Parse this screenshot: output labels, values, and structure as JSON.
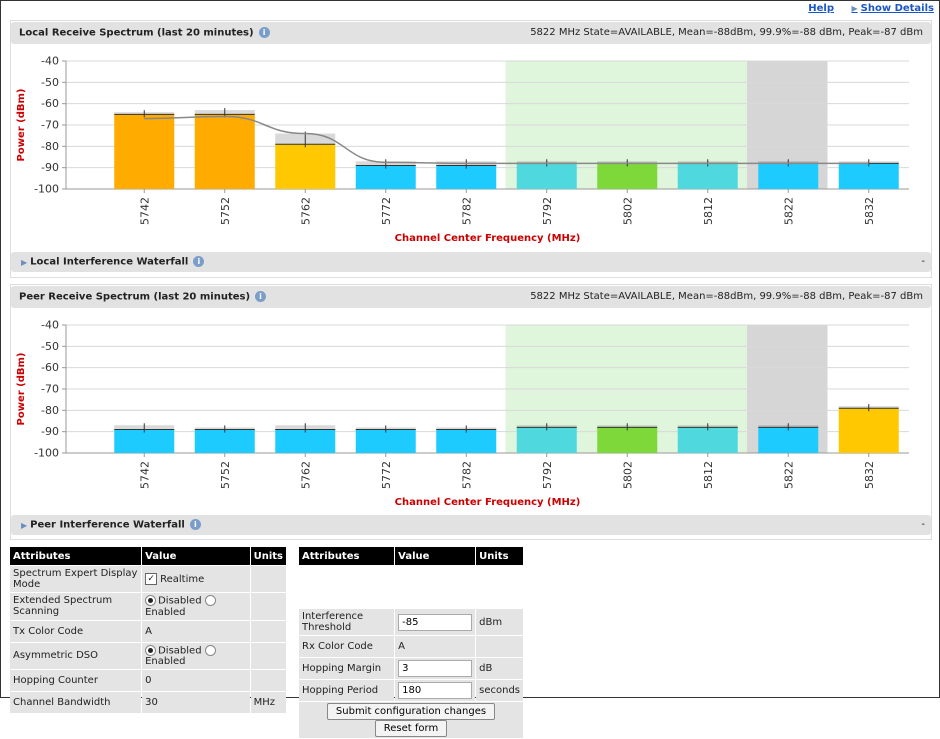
{
  "links": {
    "help": "Help",
    "show_details": "Show Details"
  },
  "local": {
    "title": "Local Receive Spectrum (last 20 minutes)",
    "status": "5822 MHz State=AVAILABLE, Mean=-88dBm, 99.9%=-88 dBm, Peak=-87 dBm",
    "waterfall_label": "Local Interference Waterfall",
    "waterfall_dash": "-"
  },
  "peer": {
    "title": "Peer Receive Spectrum (last 20 minutes)",
    "status": "5822 MHz State=AVAILABLE, Mean=-88dBm, 99.9%=-88 dBm, Peak=-87 dBm",
    "waterfall_label": "Peer Interference Waterfall",
    "waterfall_dash": "-"
  },
  "chart_data": [
    {
      "type": "bar",
      "title": "Local Receive Spectrum (last 20 minutes)",
      "xlabel": "Channel Center Frequency (MHz)",
      "ylabel": "Power (dBm)",
      "ylim": [
        -100,
        -40
      ],
      "yticks": [
        -40,
        -50,
        -60,
        -70,
        -80,
        -90,
        -100
      ],
      "categories": [
        "5742",
        "5752",
        "5762",
        "5772",
        "5782",
        "5792",
        "5802",
        "5812",
        "5822",
        "5832"
      ],
      "values": [
        -65,
        -65,
        -79,
        -89,
        -89,
        -88,
        -88,
        -88,
        -88,
        -88
      ],
      "peaks": [
        -64,
        -63,
        -74,
        -87,
        -87,
        -87,
        -87,
        -87,
        -87,
        -87
      ],
      "bar_colors": [
        "#ffab00",
        "#ffab00",
        "#ffc800",
        "#1ecbff",
        "#1ecbff",
        "#4fd9de",
        "#7ed83a",
        "#4fd9de",
        "#1ecbff",
        "#1ecbff"
      ],
      "mean_curve": [
        -67,
        -66,
        -74,
        -87.5,
        -88,
        -88,
        -88,
        -88,
        -88,
        -88
      ],
      "highlight_ranges": [
        {
          "from": "5792",
          "to": "5812",
          "color": "#dff5dc"
        },
        {
          "from": "5822",
          "to": "5822",
          "color": "#d6d6d6"
        }
      ],
      "grid": true
    },
    {
      "type": "bar",
      "title": "Peer Receive Spectrum (last 20 minutes)",
      "xlabel": "Channel Center Frequency (MHz)",
      "ylabel": "Power (dBm)",
      "ylim": [
        -100,
        -40
      ],
      "yticks": [
        -40,
        -50,
        -60,
        -70,
        -80,
        -90,
        -100
      ],
      "categories": [
        "5742",
        "5752",
        "5762",
        "5772",
        "5782",
        "5792",
        "5802",
        "5812",
        "5822",
        "5832"
      ],
      "values": [
        -89,
        -89,
        -89,
        -89,
        -89,
        -88,
        -88,
        -88,
        -88,
        -79
      ],
      "peaks": [
        -87,
        -88,
        -87,
        -88,
        -88,
        -87,
        -87,
        -87,
        -87,
        -78
      ],
      "bar_colors": [
        "#1ecbff",
        "#1ecbff",
        "#1ecbff",
        "#1ecbff",
        "#1ecbff",
        "#4fd9de",
        "#7ed83a",
        "#4fd9de",
        "#1ecbff",
        "#ffc800"
      ],
      "highlight_ranges": [
        {
          "from": "5792",
          "to": "5812",
          "color": "#dff5dc"
        },
        {
          "from": "5822",
          "to": "5822",
          "color": "#d6d6d6"
        }
      ],
      "grid": true
    }
  ],
  "attributes_left": {
    "headers": [
      "Attributes",
      "Value",
      "Units"
    ],
    "rows": [
      {
        "name": "Spectrum Expert Display Mode",
        "value": "Realtime",
        "units": ""
      },
      {
        "name": "Extended Spectrum Scanning",
        "opt1": "Disabled",
        "opt2": "Enabled",
        "units": ""
      },
      {
        "name": "Tx Color Code",
        "value": "A",
        "units": ""
      },
      {
        "name": "Asymmetric DSO",
        "opt1": "Disabled",
        "opt2": "Enabled",
        "units": ""
      },
      {
        "name": "Hopping Counter",
        "value": "0",
        "units": ""
      },
      {
        "name": "Channel Bandwidth",
        "value": "30",
        "units": "MHz"
      }
    ]
  },
  "attributes_right": {
    "headers": [
      "Attributes",
      "Value",
      "Units"
    ],
    "rows": [
      {
        "name": "Interference Threshold",
        "value": "-85",
        "units": "dBm"
      },
      {
        "name": "Rx Color Code",
        "value": "A",
        "units": ""
      },
      {
        "name": "Hopping Margin",
        "value": "3",
        "units": "dB"
      },
      {
        "name": "Hopping Period",
        "value": "180",
        "units": "seconds"
      }
    ],
    "submit_label": "Submit configuration changes",
    "reset_label": "Reset form"
  }
}
